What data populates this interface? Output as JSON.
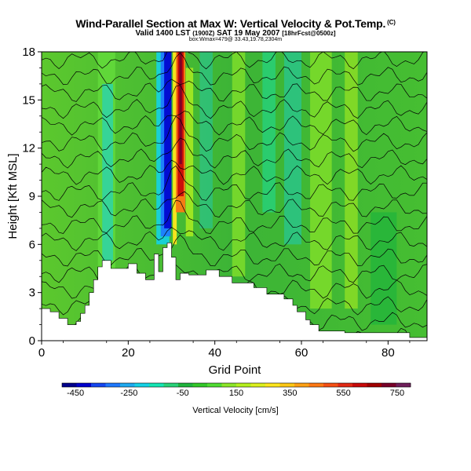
{
  "header": {
    "title": "Wind-Parallel Section at Max W: Vertical Velocity & Pot.Temp.",
    "title_mark": "(C)",
    "valid_prefix": "Valid 1400 LST",
    "valid_utc": "(1900Z)",
    "valid_date": "SAT 19 May 2007",
    "valid_suffix": "[18hrFcst@0500z]",
    "subtitle": "box:Wmax=479@ 33.43,19.78,2304m"
  },
  "chart_data": {
    "type": "heatmap",
    "xlabel": "Grid Point",
    "ylabel": "Height [Kft MSL]",
    "xlim": [
      0,
      89
    ],
    "ylim": [
      0,
      18
    ],
    "x_ticks": [
      0,
      20,
      40,
      60,
      80
    ],
    "y_ticks": [
      0,
      3,
      6,
      9,
      12,
      15,
      18
    ],
    "terrain_top_kft": [
      [
        0,
        2
      ],
      [
        2,
        2
      ],
      [
        2,
        1.8
      ],
      [
        4,
        1.8
      ],
      [
        4,
        1.4
      ],
      [
        6,
        1.4
      ],
      [
        6,
        1
      ],
      [
        8,
        1
      ],
      [
        8,
        1.2
      ],
      [
        9,
        1.2
      ],
      [
        9,
        1.7
      ],
      [
        10,
        1.7
      ],
      [
        10,
        2.2
      ],
      [
        11,
        2.2
      ],
      [
        11,
        3
      ],
      [
        12,
        3
      ],
      [
        12,
        3.8
      ],
      [
        13,
        3.8
      ],
      [
        13,
        4.6
      ],
      [
        14,
        4.6
      ],
      [
        14,
        5
      ],
      [
        16,
        5
      ],
      [
        16,
        4.5
      ],
      [
        20,
        4.5
      ],
      [
        20,
        4.8
      ],
      [
        22,
        4.8
      ],
      [
        22,
        4.2
      ],
      [
        24,
        4.2
      ],
      [
        24,
        3.8
      ],
      [
        26,
        3.8
      ],
      [
        26,
        5.4
      ],
      [
        27,
        5.4
      ],
      [
        27,
        4.3
      ],
      [
        28,
        4.3
      ],
      [
        28,
        5.8
      ],
      [
        29,
        5.8
      ],
      [
        29,
        6.1
      ],
      [
        30,
        6.1
      ],
      [
        30,
        5.2
      ],
      [
        31,
        5.2
      ],
      [
        31,
        3.8
      ],
      [
        32,
        3.8
      ],
      [
        32,
        4.2
      ],
      [
        34,
        4.2
      ],
      [
        34,
        4.1
      ],
      [
        38,
        4.1
      ],
      [
        38,
        4.4
      ],
      [
        41,
        4.4
      ],
      [
        41,
        4
      ],
      [
        44,
        4
      ],
      [
        44,
        3.6
      ],
      [
        49,
        3.6
      ],
      [
        49,
        3.3
      ],
      [
        52,
        3.3
      ],
      [
        52,
        2.9
      ],
      [
        56,
        2.9
      ],
      [
        56,
        2.6
      ],
      [
        58,
        2.6
      ],
      [
        58,
        2.2
      ],
      [
        59,
        2.2
      ],
      [
        59,
        1.8
      ],
      [
        61,
        1.8
      ],
      [
        61,
        1.3
      ],
      [
        62,
        1.3
      ],
      [
        62,
        1
      ],
      [
        64,
        1
      ],
      [
        64,
        0.6
      ],
      [
        70,
        0.6
      ],
      [
        70,
        0.5
      ],
      [
        85,
        0.5
      ],
      [
        85,
        0.2
      ],
      [
        89,
        0.2
      ]
    ],
    "colorbar": {
      "label": "Vertical Velocity [cm/s]",
      "tick_labels": [
        "-450",
        "-250",
        "-50",
        "150",
        "350",
        "550",
        "750"
      ],
      "min": -500,
      "max": 800,
      "colors": [
        "#00008c",
        "#0000cd",
        "#1446f0",
        "#1e78ff",
        "#1eaaf0",
        "#14d2e6",
        "#14e6b4",
        "#28d278",
        "#1eb43c",
        "#32c828",
        "#50dc32",
        "#8ce628",
        "#b4f01e",
        "#dcf01e",
        "#ffe61e",
        "#ffc814",
        "#ffa014",
        "#ff7814",
        "#f55014",
        "#e12814",
        "#c80a0a",
        "#a00000",
        "#780028",
        "#6e1e5a"
      ]
    }
  }
}
